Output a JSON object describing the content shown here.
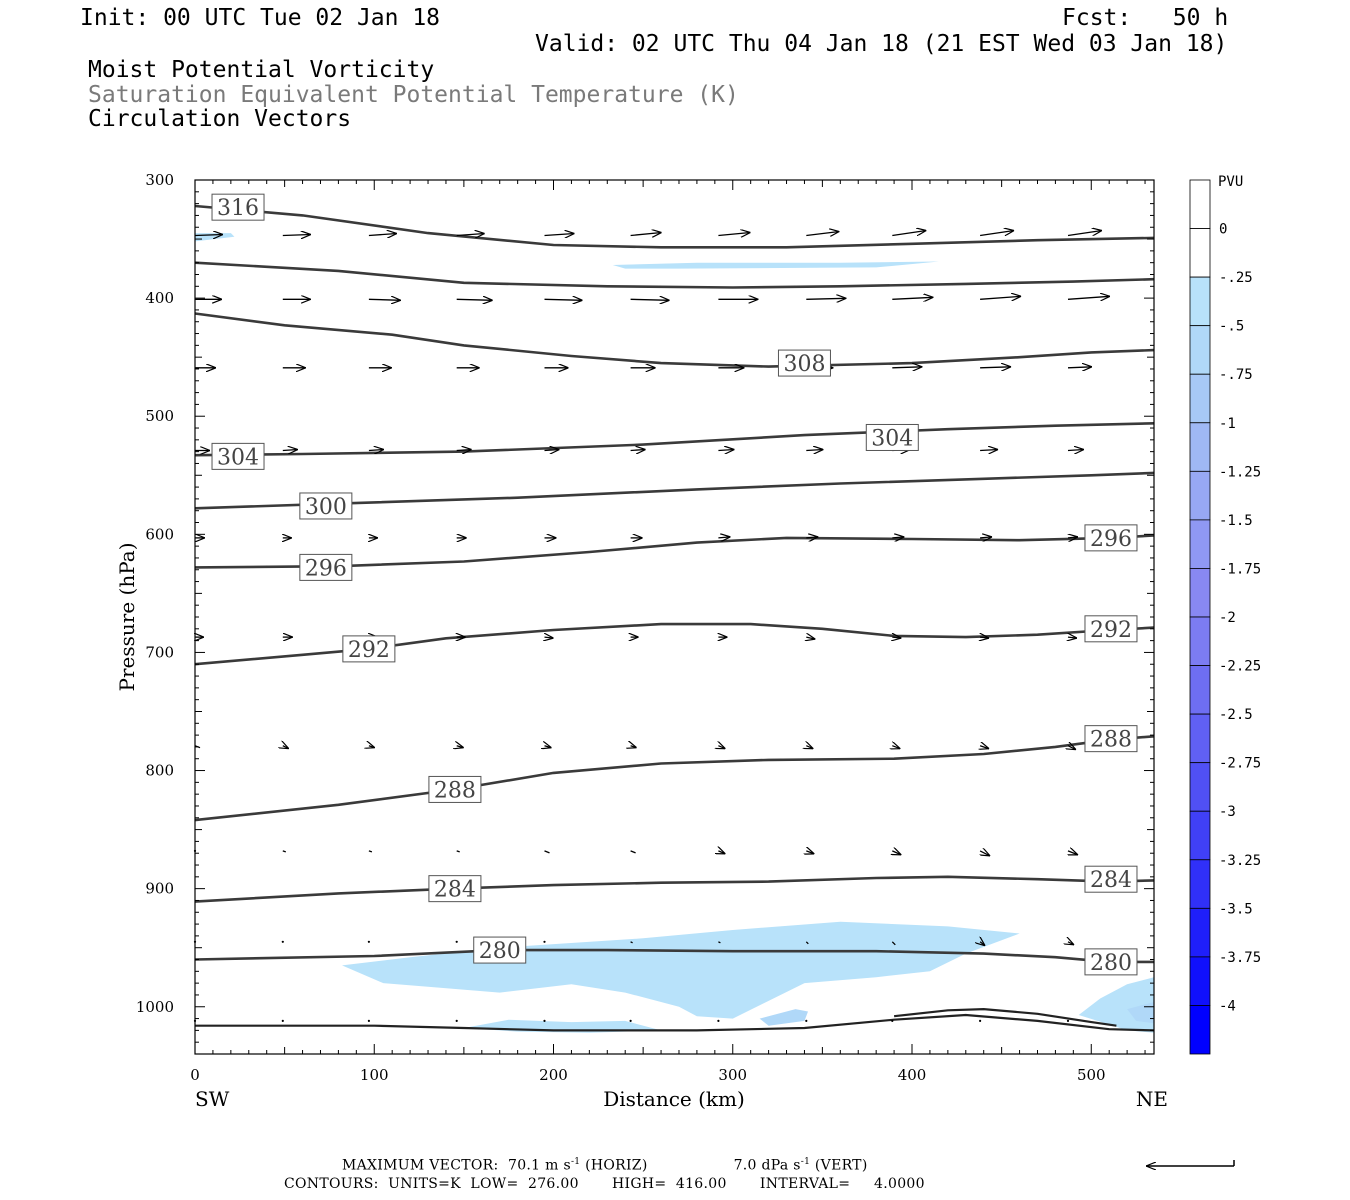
{
  "header": {
    "init": "Init: 00 UTC Tue 02 Jan 18",
    "fcst": "Fcst:   50 h",
    "valid": "Valid: 02 UTC Thu 04 Jan 18 (21 EST Wed 03 Jan 18)",
    "fields": [
      "Moist Potential Vorticity",
      "Saturation Equivalent Potential Temperature (K)",
      "Circulation Vectors"
    ]
  },
  "colors": {
    "contour": "#3a3a3a",
    "shade_light": "#b8e2fa",
    "shade_mid": "#a7c8f6"
  },
  "chart_data": {
    "type": "cross-section",
    "title": "",
    "xlabel": "Distance (km)",
    "ylabel": "Pressure (hPa)",
    "xlim": [
      0,
      535
    ],
    "ylim": [
      1040,
      300
    ],
    "x_ticks": [
      0,
      100,
      200,
      300,
      400,
      500
    ],
    "y_ticks": [
      300,
      400,
      500,
      600,
      700,
      800,
      900,
      1000
    ],
    "x_end_labels": {
      "left": "SW",
      "right": "NE"
    },
    "colorbar": {
      "units": "PVU",
      "labels": [
        "0",
        "-.25",
        "-.5",
        "-.75",
        "-1",
        "-1.25",
        "-1.5",
        "-1.75",
        "-2",
        "-2.25",
        "-2.5",
        "-2.75",
        "-3",
        "-3.25",
        "-3.5",
        "-3.75",
        "-4"
      ],
      "colors": [
        "#ffffff",
        "#ffffff",
        "#b8e2fa",
        "#b0d8f8",
        "#a7c8f6",
        "#9fb8f5",
        "#97a8f4",
        "#8f98f3",
        "#8888f2",
        "#7c7cf2",
        "#6e6ef2",
        "#6060f3",
        "#5050f4",
        "#4040f6",
        "#3030f8",
        "#1f1ffa",
        "#1010fc",
        "#0000ff"
      ]
    },
    "contours": [
      {
        "label": "316",
        "points": [
          [
            0,
            322
          ],
          [
            60,
            330
          ],
          [
            130,
            345
          ],
          [
            200,
            355
          ],
          [
            260,
            357
          ],
          [
            330,
            357
          ],
          [
            400,
            354
          ],
          [
            470,
            351
          ],
          [
            535,
            349
          ]
        ],
        "labels_at": [
          [
            24,
            323
          ]
        ]
      },
      {
        "label": "",
        "points": [
          [
            0,
            370
          ],
          [
            80,
            377
          ],
          [
            150,
            387
          ],
          [
            230,
            390
          ],
          [
            300,
            391
          ],
          [
            360,
            390
          ],
          [
            430,
            388
          ],
          [
            490,
            386
          ],
          [
            535,
            384
          ]
        ],
        "labels_at": []
      },
      {
        "label": "308",
        "points": [
          [
            0,
            413
          ],
          [
            50,
            423
          ],
          [
            110,
            431
          ],
          [
            150,
            440
          ],
          [
            210,
            449
          ],
          [
            260,
            455
          ],
          [
            320,
            458
          ],
          [
            400,
            455
          ],
          [
            460,
            450
          ],
          [
            500,
            446
          ],
          [
            535,
            444
          ]
        ],
        "labels_at": [
          [
            340,
            455
          ]
        ]
      },
      {
        "label": "304",
        "points": [
          [
            0,
            533
          ],
          [
            60,
            532
          ],
          [
            150,
            530
          ],
          [
            250,
            524
          ],
          [
            340,
            516
          ],
          [
            420,
            511
          ],
          [
            480,
            508
          ],
          [
            535,
            506
          ]
        ],
        "labels_at": [
          [
            24,
            534
          ],
          [
            389,
            518
          ]
        ]
      },
      {
        "label": "300",
        "points": [
          [
            0,
            578
          ],
          [
            80,
            574
          ],
          [
            180,
            569
          ],
          [
            280,
            562
          ],
          [
            360,
            557
          ],
          [
            440,
            553
          ],
          [
            500,
            550
          ],
          [
            535,
            548
          ]
        ],
        "labels_at": [
          [
            73,
            576
          ]
        ]
      },
      {
        "label": "296",
        "points": [
          [
            0,
            628
          ],
          [
            80,
            627
          ],
          [
            150,
            623
          ],
          [
            220,
            615
          ],
          [
            280,
            607
          ],
          [
            330,
            603
          ],
          [
            400,
            604
          ],
          [
            460,
            605
          ],
          [
            510,
            603
          ],
          [
            535,
            601
          ]
        ],
        "labels_at": [
          [
            73,
            628
          ],
          [
            511,
            603
          ]
        ]
      },
      {
        "label": "292",
        "points": [
          [
            0,
            710
          ],
          [
            60,
            702
          ],
          [
            97,
            697
          ],
          [
            140,
            688
          ],
          [
            200,
            681
          ],
          [
            260,
            676
          ],
          [
            310,
            676
          ],
          [
            350,
            680
          ],
          [
            390,
            686
          ],
          [
            430,
            687
          ],
          [
            470,
            685
          ],
          [
            510,
            681
          ],
          [
            535,
            679
          ]
        ],
        "labels_at": [
          [
            97,
            697
          ],
          [
            511,
            680
          ]
        ]
      },
      {
        "label": "288",
        "points": [
          [
            0,
            842
          ],
          [
            80,
            829
          ],
          [
            145,
            816
          ],
          [
            200,
            802
          ],
          [
            260,
            794
          ],
          [
            320,
            791
          ],
          [
            390,
            790
          ],
          [
            440,
            786
          ],
          [
            480,
            780
          ],
          [
            510,
            774
          ],
          [
            535,
            771
          ]
        ],
        "labels_at": [
          [
            145,
            816
          ],
          [
            511,
            773
          ]
        ]
      },
      {
        "label": "284",
        "points": [
          [
            0,
            911
          ],
          [
            80,
            904
          ],
          [
            145,
            900
          ],
          [
            200,
            897
          ],
          [
            260,
            895
          ],
          [
            320,
            894
          ],
          [
            380,
            891
          ],
          [
            420,
            890
          ],
          [
            470,
            892
          ],
          [
            510,
            894
          ],
          [
            535,
            893
          ]
        ],
        "labels_at": [
          [
            145,
            900
          ],
          [
            511,
            892
          ]
        ]
      },
      {
        "label": "280",
        "points": [
          [
            0,
            960
          ],
          [
            100,
            957
          ],
          [
            170,
            952
          ],
          [
            230,
            952
          ],
          [
            300,
            953
          ],
          [
            380,
            953
          ],
          [
            440,
            955
          ],
          [
            480,
            958
          ],
          [
            510,
            962
          ],
          [
            535,
            962
          ]
        ],
        "labels_at": [
          [
            170,
            952
          ],
          [
            511,
            962
          ]
        ]
      }
    ],
    "surface_lines": [
      [
        [
          0,
          1016
        ],
        [
          100,
          1016
        ],
        [
          150,
          1018
        ],
        [
          200,
          1020
        ],
        [
          280,
          1020
        ],
        [
          340,
          1018
        ],
        [
          390,
          1011
        ],
        [
          430,
          1007
        ],
        [
          470,
          1012
        ],
        [
          510,
          1019
        ],
        [
          535,
          1020
        ]
      ],
      [
        [
          390,
          1008
        ],
        [
          420,
          1003
        ],
        [
          440,
          1002
        ],
        [
          470,
          1006
        ],
        [
          500,
          1013
        ],
        [
          514,
          1016
        ]
      ]
    ],
    "pv_regions": [
      {
        "level": "-.25",
        "points": [
          [
            0,
            345
          ],
          [
            20,
            345
          ],
          [
            22,
            348
          ],
          [
            0,
            352
          ]
        ]
      },
      {
        "level": "-.25",
        "points": [
          [
            233,
            372
          ],
          [
            280,
            370
          ],
          [
            360,
            370
          ],
          [
            415,
            369
          ],
          [
            380,
            374
          ],
          [
            270,
            375
          ],
          [
            240,
            375
          ]
        ]
      },
      {
        "level": "-.25",
        "points": [
          [
            82,
            965
          ],
          [
            120,
            958
          ],
          [
            170,
            950
          ],
          [
            250,
            942
          ],
          [
            300,
            935
          ],
          [
            360,
            928
          ],
          [
            420,
            932
          ],
          [
            460,
            938
          ],
          [
            430,
            955
          ],
          [
            410,
            970
          ],
          [
            380,
            975
          ],
          [
            340,
            980
          ],
          [
            320,
            995
          ],
          [
            300,
            1010
          ],
          [
            280,
            1008
          ],
          [
            270,
            1000
          ],
          [
            240,
            988
          ],
          [
            210,
            981
          ],
          [
            170,
            988
          ],
          [
            130,
            983
          ],
          [
            105,
            980
          ]
        ]
      },
      {
        "level": "-.25",
        "points": [
          [
            150,
            1018
          ],
          [
            175,
            1011
          ],
          [
            210,
            1013
          ],
          [
            240,
            1012
          ],
          [
            260,
            1020
          ],
          [
            220,
            1022
          ],
          [
            180,
            1021
          ]
        ]
      },
      {
        "level": "-.25",
        "points": [
          [
            493,
            1007
          ],
          [
            505,
            993
          ],
          [
            520,
            981
          ],
          [
            535,
            975
          ],
          [
            535,
            1022
          ],
          [
            520,
            1020
          ],
          [
            510,
            1015
          ]
        ]
      },
      {
        "level": "-.5",
        "points": [
          [
            315,
            1010
          ],
          [
            335,
            1002
          ],
          [
            342,
            1004
          ],
          [
            340,
            1012
          ],
          [
            320,
            1016
          ]
        ]
      },
      {
        "level": "-.5",
        "points": [
          [
            520,
            1002
          ],
          [
            535,
            996
          ],
          [
            535,
            1014
          ],
          [
            525,
            1012
          ]
        ]
      }
    ],
    "vectors": {
      "x_positions": [
        0,
        49,
        97,
        146,
        195,
        243,
        292,
        341,
        389,
        438,
        487
      ],
      "rows": [
        {
          "p": 347,
          "dx": [
            28,
            28,
            28,
            28,
            30,
            31,
            32,
            33,
            34,
            34,
            34
          ],
          "dp": [
            -1,
            -1,
            -2,
            -2,
            -2,
            -3,
            -3,
            -4,
            -5,
            -5,
            -5
          ]
        },
        {
          "p": 401,
          "dx": [
            27,
            28,
            32,
            36,
            38,
            39,
            40,
            40,
            41,
            41,
            42
          ],
          "dp": [
            0,
            0,
            1,
            1,
            1,
            1,
            0,
            -1,
            -2,
            -3,
            -3
          ]
        },
        {
          "p": 459,
          "dx": [
            21,
            23,
            23,
            23,
            24,
            25,
            26,
            27,
            30,
            31,
            24
          ],
          "dp": [
            0,
            0,
            0,
            0,
            0,
            0,
            0,
            0,
            -1,
            -1,
            -1
          ]
        },
        {
          "p": 529,
          "dx": [
            15,
            15,
            15,
            15,
            15,
            15,
            16,
            17,
            18,
            18,
            16
          ],
          "dp": [
            0,
            -1,
            -1,
            -1,
            -1,
            -1,
            -1,
            -1,
            -1,
            -1,
            -1
          ]
        },
        {
          "p": 603,
          "dx": [
            10,
            9,
            9,
            10,
            12,
            12,
            12,
            12,
            12,
            12,
            10
          ],
          "dp": [
            0,
            0,
            0,
            0,
            0,
            0,
            -1,
            -1,
            -1,
            -1,
            -1
          ]
        },
        {
          "p": 687,
          "dx": [
            9,
            10,
            9,
            9,
            9,
            8,
            9,
            9,
            9,
            9,
            9
          ],
          "dp": [
            0,
            0,
            0,
            0,
            1,
            0,
            0,
            2,
            1,
            1,
            1
          ]
        },
        {
          "p": 779,
          "dx": [
            5,
            6,
            6,
            7,
            7,
            6,
            7,
            7,
            8,
            9,
            8
          ],
          "dp": [
            2,
            3,
            2,
            2,
            2,
            2,
            3,
            3,
            3,
            3,
            4
          ]
        },
        {
          "p": 868,
          "dx": [
            0,
            3,
            3,
            3,
            5,
            5,
            7,
            8,
            9,
            10,
            10
          ],
          "dp": [
            0,
            1,
            1,
            1,
            2,
            2,
            3,
            3,
            4,
            5,
            4
          ]
        },
        {
          "p": 945,
          "dx": [
            0,
            1,
            1,
            1,
            1,
            2,
            2,
            2,
            3,
            5,
            6
          ],
          "dp": [
            1,
            1,
            1,
            1,
            1,
            1,
            1,
            2,
            3,
            4,
            3
          ]
        },
        {
          "p": 1012,
          "dx": [
            0,
            1,
            1,
            1,
            1,
            1,
            1,
            1,
            1,
            1,
            1
          ],
          "dp": [
            0,
            0,
            0,
            0,
            1,
            1,
            1,
            0,
            0,
            0,
            0
          ]
        }
      ]
    }
  },
  "footer": {
    "max_vector_label": "MAXIMUM VECTOR:",
    "horiz": "70.1 m s",
    "horiz_unit": "(HORIZ)",
    "vert": "7.0 dPa s",
    "vert_unit": "(VERT)",
    "exponent": "-1",
    "contours": "CONTOURS:  UNITS=K  LOW=  276.00       HIGH=  416.00       INTERVAL=     4.0000"
  }
}
